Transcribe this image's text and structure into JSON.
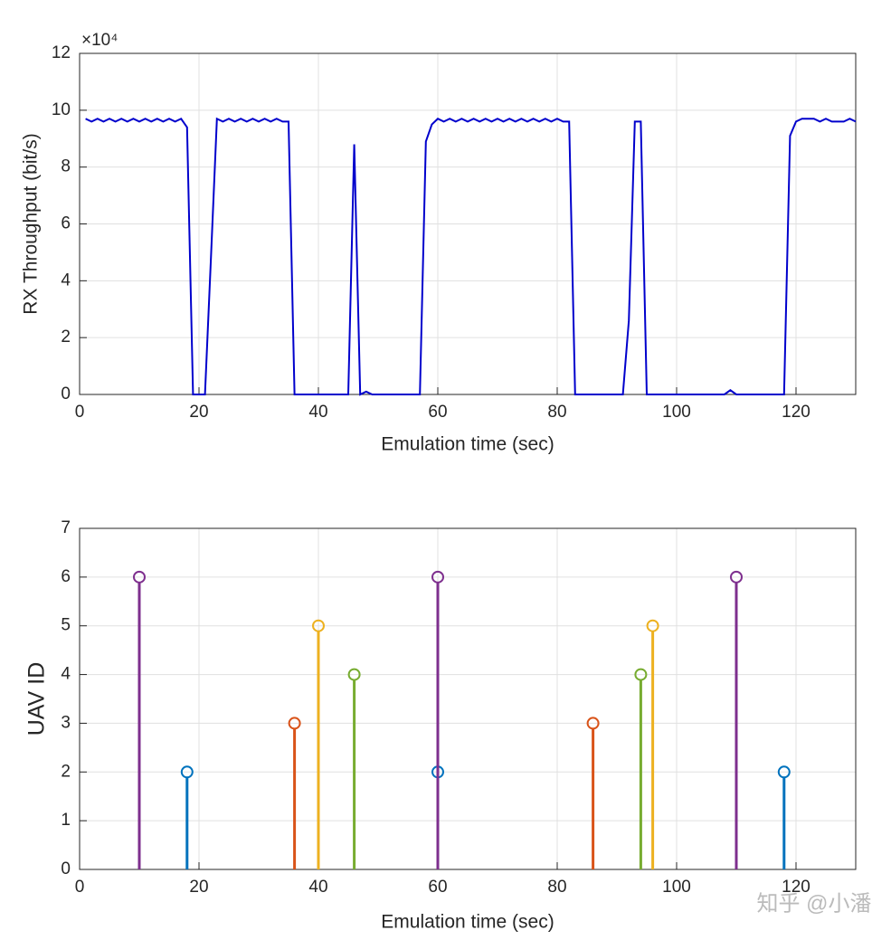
{
  "chart_data": [
    {
      "type": "line",
      "xlabel": "Emulation time (sec)",
      "ylabel": "RX Throughput (bit/s)",
      "y_multiplier": "×10⁴",
      "xlim": [
        0,
        130
      ],
      "xticks": [
        0,
        20,
        40,
        60,
        80,
        100,
        120
      ],
      "ylim": [
        0,
        12
      ],
      "yticks": [
        0,
        2,
        4,
        6,
        8,
        10,
        12
      ],
      "grid": true,
      "x": [
        1,
        2,
        3,
        4,
        5,
        6,
        7,
        8,
        9,
        10,
        11,
        12,
        13,
        14,
        15,
        16,
        17,
        18,
        19,
        20,
        21,
        22,
        23,
        24,
        25,
        26,
        27,
        28,
        29,
        30,
        31,
        32,
        33,
        34,
        35,
        36,
        37,
        38,
        39,
        40,
        41,
        42,
        43,
        44,
        45,
        46,
        47,
        48,
        49,
        50,
        51,
        52,
        53,
        54,
        55,
        56,
        57,
        58,
        59,
        60,
        61,
        62,
        63,
        64,
        65,
        66,
        67,
        68,
        69,
        70,
        71,
        72,
        73,
        74,
        75,
        76,
        77,
        78,
        79,
        80,
        81,
        82,
        83,
        84,
        85,
        86,
        87,
        88,
        89,
        90,
        91,
        92,
        93,
        94,
        95,
        96,
        97,
        98,
        99,
        100,
        101,
        102,
        103,
        104,
        105,
        106,
        107,
        108,
        109,
        110,
        111,
        112,
        113,
        114,
        115,
        116,
        117,
        118,
        119,
        120,
        121,
        122,
        123,
        124,
        125,
        126,
        127,
        128,
        129,
        130
      ],
      "series": [
        {
          "color": "#0000cc",
          "values": [
            9.7,
            9.6,
            9.7,
            9.6,
            9.7,
            9.6,
            9.7,
            9.6,
            9.7,
            9.6,
            9.7,
            9.6,
            9.7,
            9.6,
            9.7,
            9.6,
            9.7,
            9.4,
            0,
            0,
            0,
            4.8,
            9.7,
            9.6,
            9.7,
            9.6,
            9.7,
            9.6,
            9.7,
            9.6,
            9.7,
            9.6,
            9.7,
            9.6,
            9.6,
            0,
            0,
            0,
            0,
            0,
            0,
            0,
            0,
            0,
            0,
            8.8,
            0,
            0.1,
            0,
            0,
            0,
            0,
            0,
            0,
            0,
            0,
            0,
            8.9,
            9.5,
            9.7,
            9.6,
            9.7,
            9.6,
            9.7,
            9.6,
            9.7,
            9.6,
            9.7,
            9.6,
            9.7,
            9.6,
            9.7,
            9.6,
            9.7,
            9.6,
            9.7,
            9.6,
            9.7,
            9.6,
            9.7,
            9.6,
            9.6,
            0,
            0,
            0,
            0,
            0,
            0,
            0,
            0,
            0,
            2.6,
            9.6,
            9.6,
            0,
            0,
            0,
            0,
            0,
            0,
            0,
            0,
            0,
            0,
            0,
            0,
            0,
            0,
            0.15,
            0,
            0,
            0,
            0,
            0,
            0,
            0,
            0,
            0,
            9.1,
            9.6,
            9.7,
            9.7,
            9.7,
            9.6,
            9.7,
            9.6,
            9.6,
            9.6,
            9.7,
            9.6
          ]
        }
      ]
    },
    {
      "type": "stem",
      "xlabel": "Emulation time (sec)",
      "ylabel": "UAV ID",
      "xlim": [
        0,
        130
      ],
      "xticks": [
        0,
        20,
        40,
        60,
        80,
        100,
        120
      ],
      "ylim": [
        0,
        7
      ],
      "yticks": [
        0,
        1,
        2,
        3,
        4,
        5,
        6,
        7
      ],
      "grid": true,
      "series": [
        {
          "color": "#0072bd",
          "x": [
            18,
            60,
            118
          ],
          "values": [
            2,
            2,
            2
          ]
        },
        {
          "color": "#d95319",
          "x": [
            36,
            86
          ],
          "values": [
            3,
            3
          ]
        },
        {
          "color": "#edb120",
          "x": [
            40,
            96
          ],
          "values": [
            5,
            5
          ]
        },
        {
          "color": "#7e2f8e",
          "x": [
            10,
            60,
            110
          ],
          "values": [
            6,
            6,
            6
          ]
        },
        {
          "color": "#77ac30",
          "x": [
            46,
            94
          ],
          "values": [
            4,
            4
          ]
        }
      ]
    }
  ],
  "watermark": "知乎 @小潘"
}
